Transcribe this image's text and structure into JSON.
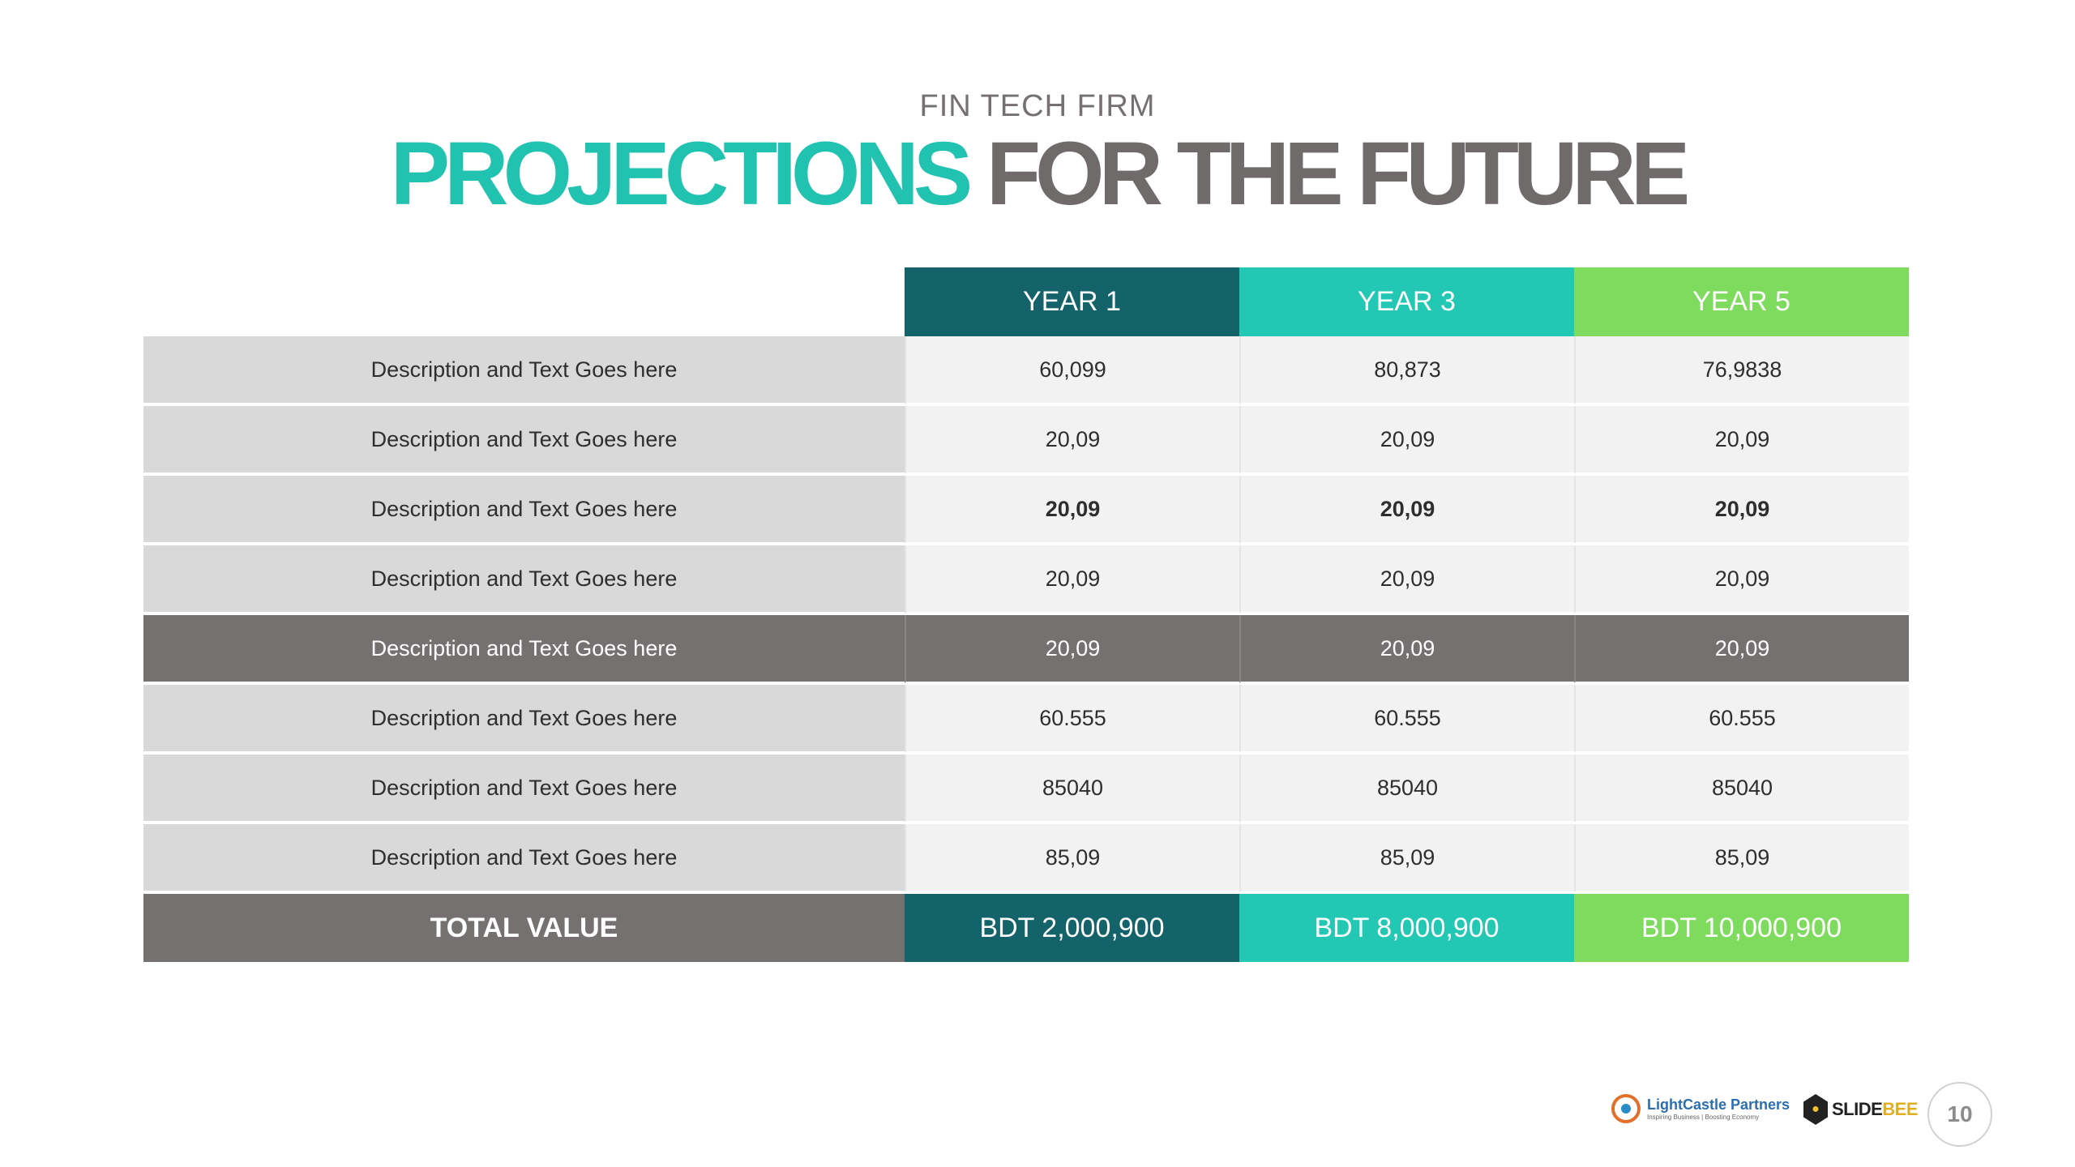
{
  "header": {
    "subtitle": "FIN TECH FIRM",
    "title_accent": "PROJECTIONS",
    "title_rest": "FOR THE FUTURE"
  },
  "table": {
    "columns": [
      "YEAR 1",
      "YEAR 3",
      "YEAR 5"
    ],
    "rows": [
      {
        "desc": "Description and Text Goes here",
        "values": [
          "60,099",
          "80,873",
          "76,9838"
        ]
      },
      {
        "desc": "Description and Text Goes here",
        "values": [
          "20,09",
          "20,09",
          "20,09"
        ]
      },
      {
        "desc": "Description and Text Goes here",
        "values": [
          "20,09",
          "20,09",
          "20,09"
        ]
      },
      {
        "desc": "Description and Text Goes here",
        "values": [
          "20,09",
          "20,09",
          "20,09"
        ]
      },
      {
        "desc": "Description and Text Goes here",
        "values": [
          "20,09",
          "20,09",
          "20,09"
        ]
      },
      {
        "desc": "Description and Text Goes here",
        "values": [
          "60.555",
          "60.555",
          "60.555"
        ]
      },
      {
        "desc": "Description and Text Goes here",
        "values": [
          "85040",
          "85040",
          "85040"
        ]
      },
      {
        "desc": "Description and Text Goes here",
        "values": [
          "85,09",
          "85,09",
          "85,09"
        ]
      }
    ],
    "total": {
      "label": "TOTAL VALUE",
      "values": [
        "BDT 2,000,900",
        "BDT 8,000,900",
        "BDT 10,000,900"
      ]
    }
  },
  "colors": {
    "accent": "#21c2b0",
    "year1": "#14636b",
    "year3": "#22c8b4",
    "year5": "#7fdb5e",
    "dark_row": "#767171"
  },
  "footer": {
    "logo1_name": "LightCastle Partners",
    "logo1_tagline": "Inspiring Business | Boosting Economy",
    "logo2_name_a": "SLIDE",
    "logo2_name_b": "BEE",
    "page_number": "10"
  }
}
